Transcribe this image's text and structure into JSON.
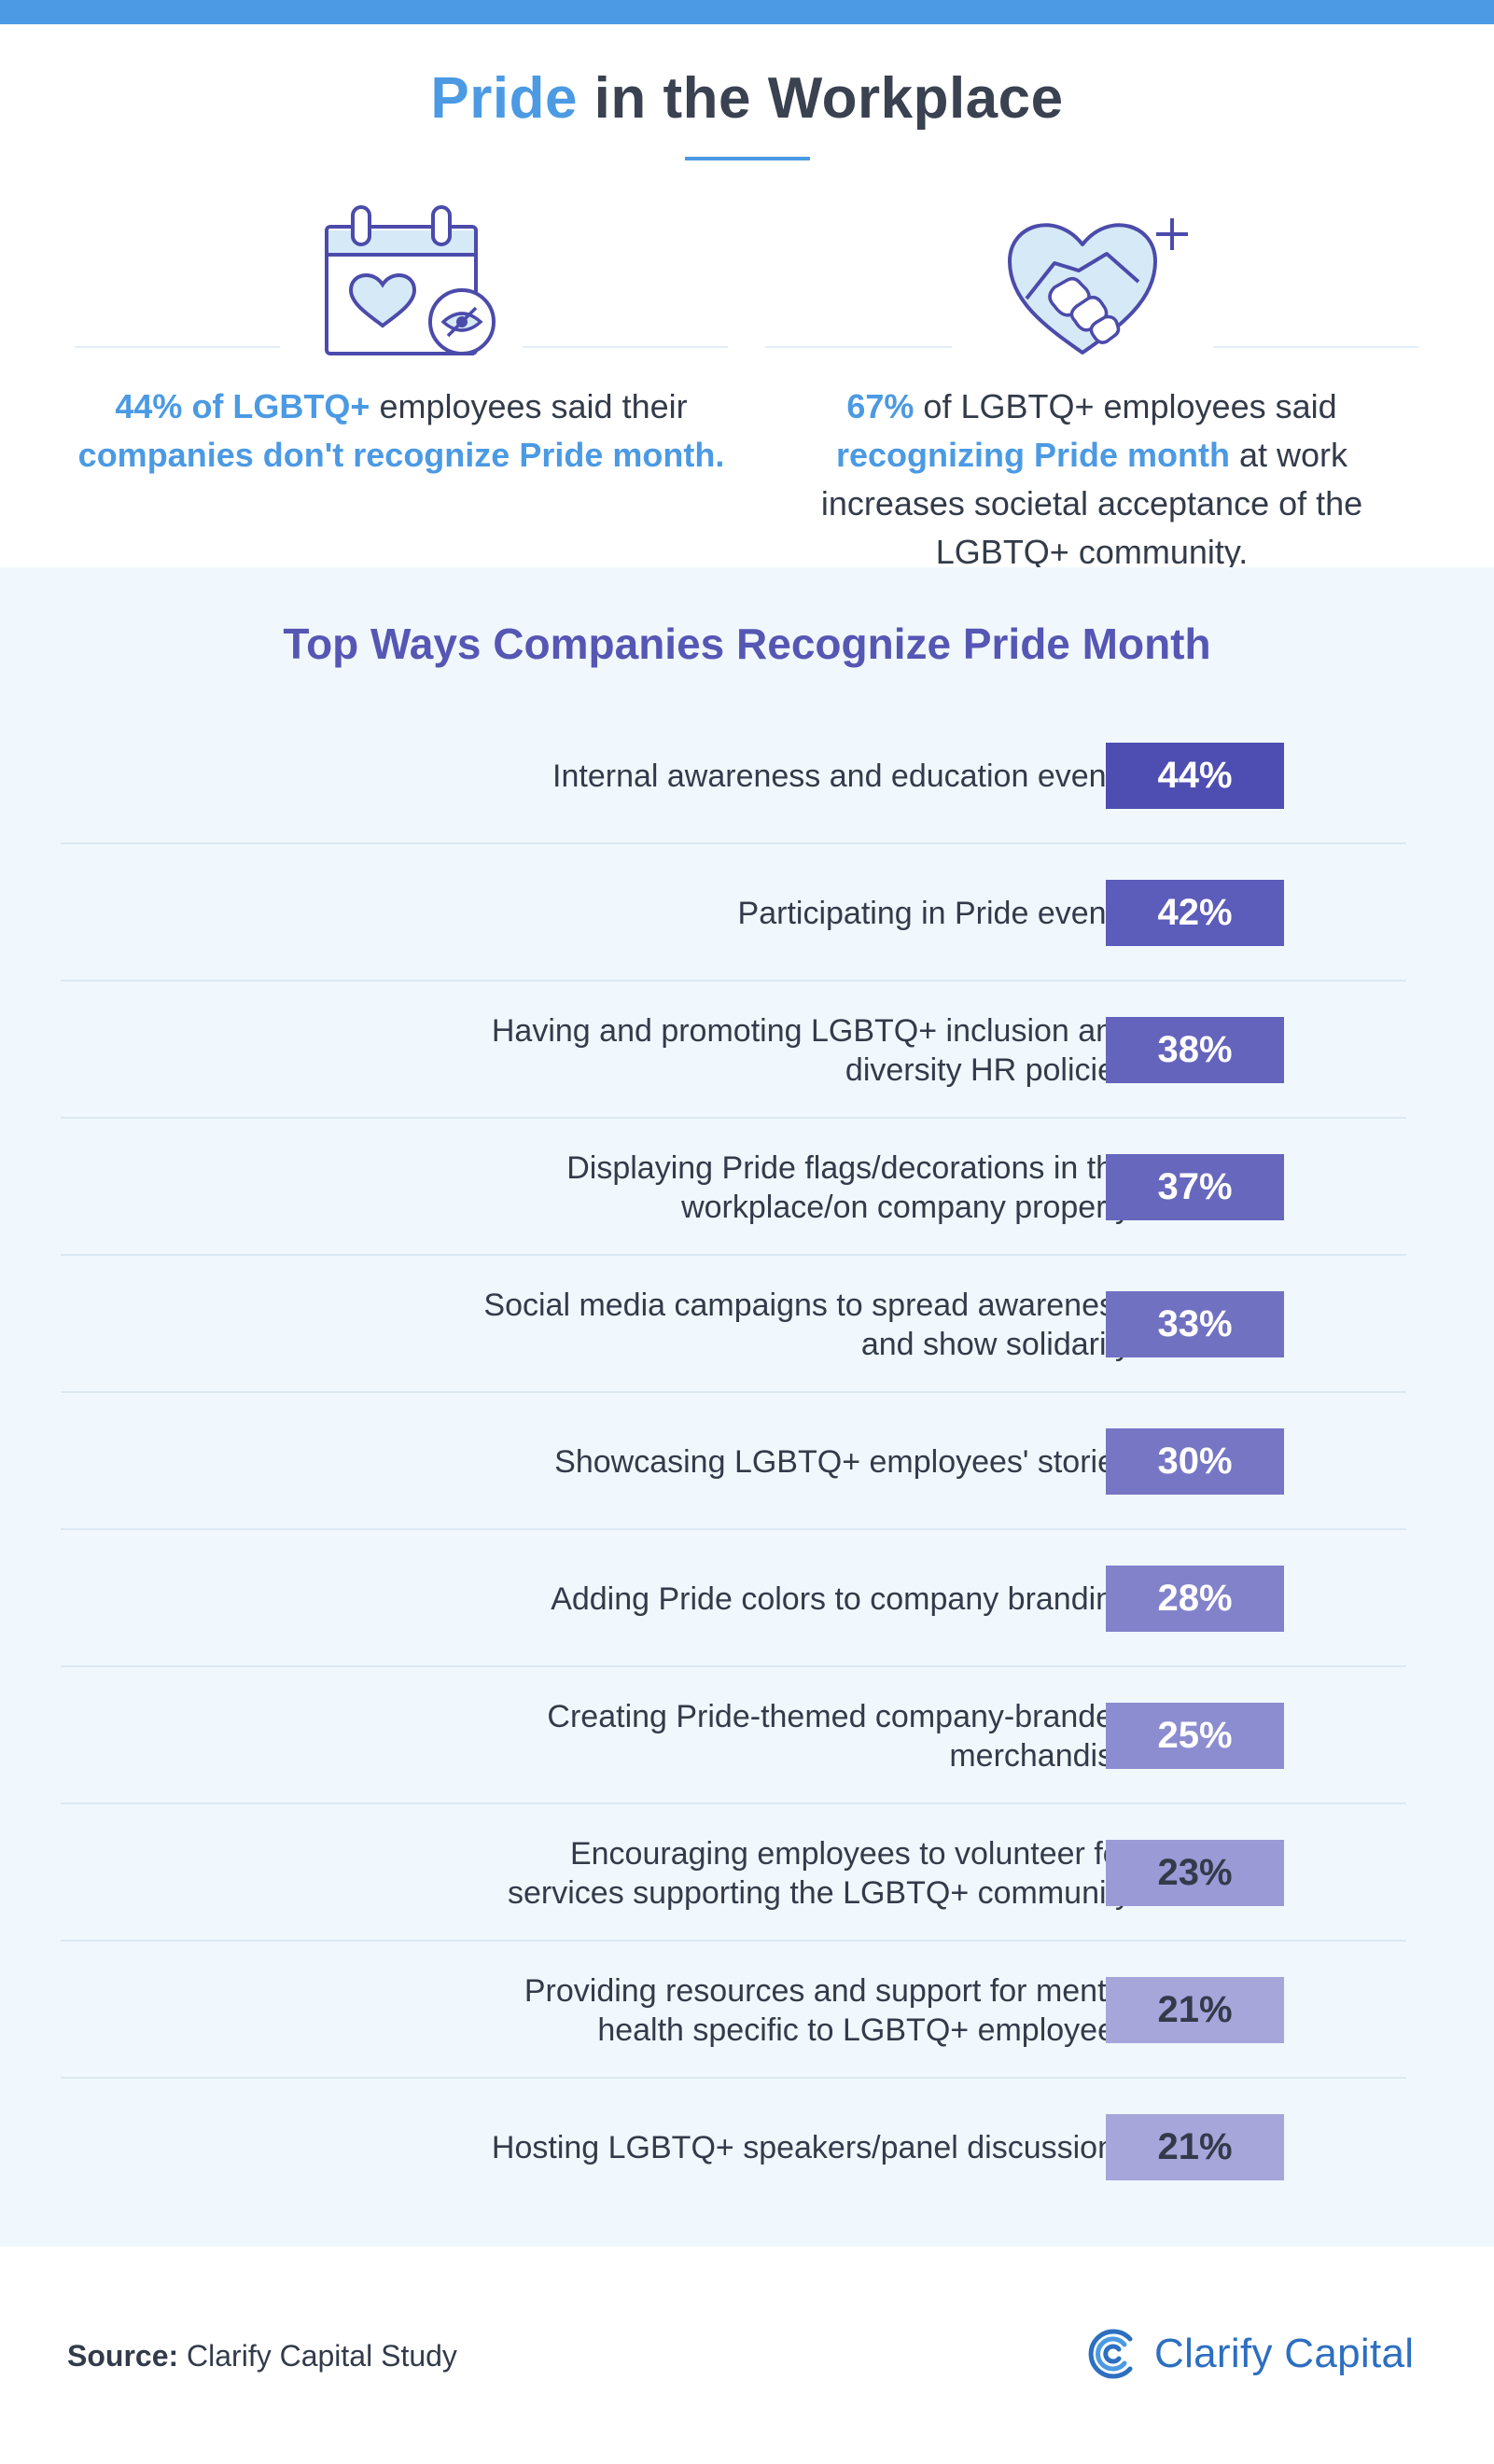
{
  "header": {
    "title_accent": "Pride",
    "title_rest": " in the Workplace"
  },
  "stats": {
    "left": {
      "icon": "calendar-heart-eye-icon",
      "parts": [
        {
          "text": "44% of LGBTQ+",
          "hl": true
        },
        {
          "text": " employees said their ",
          "hl": false
        },
        {
          "text": "companies don't recognize Pride month.",
          "hl": true
        }
      ]
    },
    "right": {
      "icon": "heart-handshake-icon",
      "parts": [
        {
          "text": "67%",
          "hl": true
        },
        {
          "text": " of LGBTQ+ employees said ",
          "hl": false
        },
        {
          "text": "recognizing Pride month",
          "hl": true
        },
        {
          "text": " at work increases societal acceptance of the LGBTQ+ community.",
          "hl": false
        }
      ]
    }
  },
  "chart_data": {
    "type": "table",
    "title": "Top Ways Companies Recognize Pride Month",
    "unit": "%",
    "categories": [
      "Internal awareness and education events",
      "Participating in Pride events",
      "Having and promoting LGBTQ+ inclusion and diversity HR policies",
      "Displaying Pride flags/decorations in the workplace/on company property",
      "Social media campaigns to spread awareness and show solidarity",
      "Showcasing LGBTQ+ employees' stories",
      "Adding Pride colors to company branding",
      "Creating Pride-themed company-branded merchandise",
      "Encouraging employees to volunteer for services supporting the LGBTQ+ community",
      "Providing resources and support for mental health specific to LGBTQ+ employees",
      "Hosting LGBTQ+ speakers/panel discussions"
    ],
    "values": [
      44,
      42,
      38,
      37,
      33,
      30,
      28,
      25,
      23,
      21,
      21
    ],
    "value_labels": [
      "44%",
      "42%",
      "38%",
      "37%",
      "33%",
      "30%",
      "28%",
      "25%",
      "23%",
      "21%",
      "21%"
    ],
    "box_colors": [
      "#4e4eb2",
      "#5c5cba",
      "#6464bd",
      "#6767be",
      "#7171c2",
      "#7676c5",
      "#8282cb",
      "#8c8cd0",
      "#9a9ad6",
      "#a6a6db",
      "#a6a6db"
    ],
    "text_colors": [
      "#ffffff",
      "#ffffff",
      "#ffffff",
      "#ffffff",
      "#ffffff",
      "#ffffff",
      "#ffffff",
      "#ffffff",
      "#333b4a",
      "#333b4a",
      "#333b4a"
    ]
  },
  "footer": {
    "source_label": "Source:",
    "source_text": " Clarify Capital Study",
    "brand_name": "Clarify Capital",
    "brand_icon": "clarify-capital-logo-icon"
  },
  "colors": {
    "accent": "#4b9ae3",
    "chart_title": "#5656b4",
    "panel_bg": "#f0f8fd"
  }
}
